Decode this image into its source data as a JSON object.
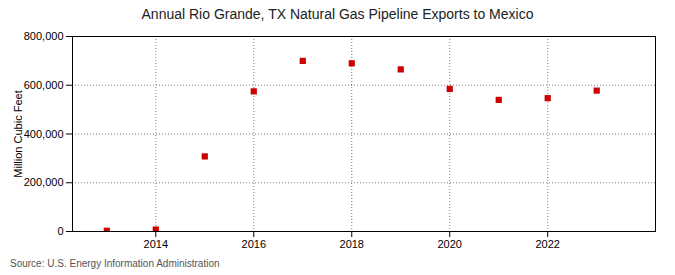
{
  "chart_data": {
    "type": "scatter",
    "title": "Annual Rio Grande, TX  Natural Gas Pipeline Exports to Mexico",
    "ylabel": "Million Cubic Feet",
    "annotations": [
      "Source: U.S. Energy Information Administration"
    ],
    "x": [
      2013,
      2014,
      2015,
      2016,
      2017,
      2018,
      2019,
      2020,
      2021,
      2022,
      2023
    ],
    "values": [
      3000,
      8000,
      308000,
      575000,
      700000,
      690000,
      665000,
      585000,
      540000,
      547000,
      578000
    ],
    "color": "#cc0000",
    "marker": "square",
    "xlim": [
      2012.3,
      2024.2
    ],
    "xticks": [
      2014,
      2016,
      2018,
      2020,
      2022
    ],
    "ylim": [
      0,
      800000
    ],
    "yticks": [
      0,
      {
        "value": 200000,
        "label": "200,000"
      },
      {
        "value": 400000,
        "label": "400,000"
      },
      {
        "value": 600000,
        "label": "600,000"
      },
      {
        "value": 800000,
        "label": "800,000"
      }
    ],
    "grid": true
  }
}
